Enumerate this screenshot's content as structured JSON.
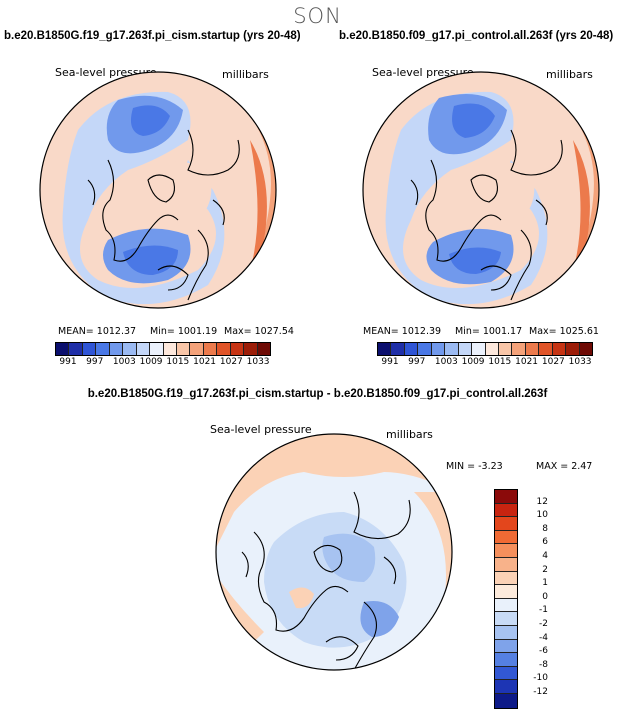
{
  "season": "SON",
  "panels": [
    {
      "title": "b.e20.B1850G.f19_g17.263f.pi_cism.startup (yrs 20-48)",
      "variable": "Sea-level pressure",
      "units": "millibars",
      "mean_text": "MEAN= 1012.37",
      "min_text": "Min= 1001.19",
      "max_text": "Max= 1027.54"
    },
    {
      "title": "b.e20.B1850.f09_g17.pi_control.all.263f (yrs 20-48)",
      "variable": "Sea-level pressure",
      "units": "millibars",
      "mean_text": "MEAN= 1012.39",
      "min_text": "Min= 1001.17",
      "max_text": "Max= 1025.61"
    }
  ],
  "abs_colorbar": {
    "colors": [
      "#0b0f6e",
      "#1f2fa8",
      "#2f55d6",
      "#4a78e6",
      "#7199ec",
      "#9bbaf2",
      "#c4d7f8",
      "#ebf1fc",
      "#fde8dc",
      "#f9c6a8",
      "#f4a27a",
      "#ec7a4c",
      "#e05428",
      "#c63414",
      "#9c1d08",
      "#6e0a04"
    ],
    "tick_labels": [
      "991",
      "997",
      "1003",
      "1009",
      "1015",
      "1021",
      "1027",
      "1033"
    ]
  },
  "diff_panel": {
    "title": "b.e20.B1850G.f19_g17.263f.pi_cism.startup - b.e20.B1850.f09_g17.pi_control.all.263f",
    "variable": "Sea-level pressure",
    "units": "millibars",
    "min_text": "MIN =   -3.23",
    "max_text": "MAX =    2.47"
  },
  "diff_colorbar": {
    "colors": [
      "#8b0a0a",
      "#c82410",
      "#e3461c",
      "#f06a34",
      "#f58f5c",
      "#f8b28a",
      "#fbd2b6",
      "#fdebdc",
      "#e9f1fb",
      "#c8dbf6",
      "#a7c3f1",
      "#7fa3ea",
      "#5580e2",
      "#3258d4",
      "#1d35b4",
      "#0d1a88"
    ],
    "tick_labels": [
      "12",
      "10",
      "8",
      "6",
      "4",
      "2",
      "1",
      "0",
      "-1",
      "-2",
      "-4",
      "-6",
      "-8",
      "-10",
      "-12"
    ]
  },
  "map_colors": {
    "ocean_base": "#f9d9c8",
    "low_deep": "#4a78e6",
    "low_mid": "#7199ec",
    "low_light": "#9bbaf2",
    "low_pale": "#c4d7f8",
    "high_warm": "#f4a27a",
    "high_hot": "#ec7a4c",
    "diff_base": "#e9f1fb",
    "diff_pos": "#fbd2b6",
    "diff_neg": "#c8dbf6",
    "diff_neg2": "#a7c3f1",
    "diff_neg3": "#7fa3ea"
  }
}
